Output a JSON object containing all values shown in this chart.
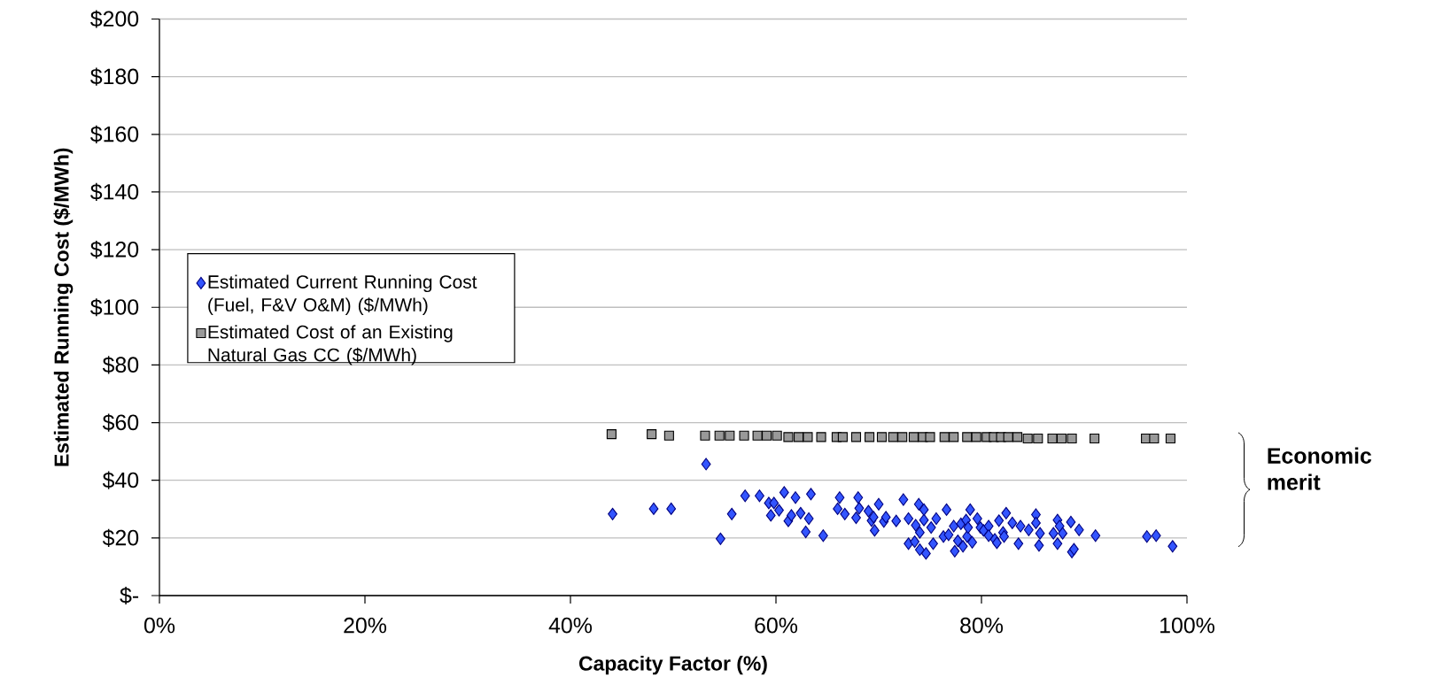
{
  "chart_data": {
    "type": "scatter",
    "xlabel": "Capacity Factor (%)",
    "ylabel": "Estimated Running Cost ($/MWh)",
    "xlim": [
      0,
      100
    ],
    "ylim": [
      0,
      200
    ],
    "xticks": [
      {
        "value": 0,
        "label": "0%"
      },
      {
        "value": 20,
        "label": "20%"
      },
      {
        "value": 40,
        "label": "40%"
      },
      {
        "value": 60,
        "label": "60%"
      },
      {
        "value": 80,
        "label": "80%"
      },
      {
        "value": 100,
        "label": "100%"
      }
    ],
    "yticks": [
      {
        "value": 0,
        "label": "$-"
      },
      {
        "value": 20,
        "label": "$20"
      },
      {
        "value": 40,
        "label": "$40"
      },
      {
        "value": 60,
        "label": "$60"
      },
      {
        "value": 80,
        "label": "$80"
      },
      {
        "value": 100,
        "label": "$100"
      },
      {
        "value": 120,
        "label": "$120"
      },
      {
        "value": 140,
        "label": "$140"
      },
      {
        "value": 160,
        "label": "$160"
      },
      {
        "value": 180,
        "label": "$180"
      },
      {
        "value": 200,
        "label": "$200"
      }
    ],
    "grid": "y",
    "legend": "left",
    "annotations": [
      "Economic merit"
    ],
    "series": [
      {
        "name": "Estimated Current Running Cost (Fuel, F&V O&M) ($/MWh)",
        "color": "#3355ff",
        "marker": "diamond",
        "x": [
          44.1,
          48.1,
          49.8,
          53.2,
          54.6,
          55.7,
          57.0,
          58.4,
          59.3,
          59.8,
          59.5,
          60.3,
          60.8,
          61.2,
          61.5,
          61.9,
          62.4,
          62.9,
          63.2,
          63.4,
          64.6,
          66.2,
          66.0,
          66.7,
          67.8,
          68.0,
          68.1,
          69.0,
          69.3,
          69.5,
          69.6,
          70.0,
          70.5,
          70.7,
          71.7,
          72.4,
          72.9,
          72.9,
          73.5,
          73.6,
          73.9,
          74.0,
          74.0,
          74.4,
          74.4,
          74.6,
          75.1,
          75.3,
          75.6,
          76.3,
          76.6,
          76.8,
          77.3,
          77.4,
          77.7,
          78.0,
          78.2,
          78.5,
          78.6,
          78.7,
          78.9,
          79.1,
          79.6,
          79.9,
          80.2,
          80.7,
          80.7,
          81.3,
          81.5,
          81.7,
          82.1,
          82.2,
          82.4,
          83.0,
          83.6,
          83.8,
          84.6,
          85.3,
          85.3,
          85.6,
          85.7,
          87.0,
          87.4,
          87.4,
          87.6,
          87.9,
          88.7,
          88.8,
          89.0,
          89.5,
          91.1,
          96.1,
          97.0,
          98.6
        ],
        "values": [
          28.3,
          30.1,
          30.1,
          45.6,
          19.7,
          28.3,
          34.6,
          34.6,
          32.1,
          32.1,
          27.8,
          29.6,
          35.8,
          25.9,
          27.8,
          34.0,
          28.6,
          22.1,
          26.7,
          35.2,
          20.8,
          34.0,
          30.1,
          28.3,
          27.0,
          34.0,
          30.3,
          29.3,
          26.0,
          27.2,
          22.6,
          31.7,
          25.7,
          27.2,
          25.9,
          33.3,
          26.7,
          18.0,
          18.7,
          24.4,
          31.7,
          21.9,
          15.9,
          26.2,
          29.8,
          14.6,
          23.6,
          18.0,
          26.7,
          20.5,
          29.8,
          21.1,
          24.1,
          15.4,
          19.0,
          24.9,
          17.1,
          26.2,
          20.5,
          23.6,
          29.8,
          18.5,
          26.7,
          23.6,
          22.6,
          24.1,
          20.8,
          19.5,
          18.3,
          26.0,
          21.9,
          20.5,
          28.6,
          25.2,
          18.0,
          24.1,
          22.8,
          28.1,
          25.2,
          17.4,
          21.6,
          21.6,
          26.2,
          18.0,
          24.1,
          21.6,
          25.5,
          15.1,
          16.1,
          22.8,
          20.8,
          20.5,
          20.8,
          17.1
        ]
      },
      {
        "name": "Estimated Cost of an Existing Natural Gas CC ($/MWh)",
        "color": "#999999",
        "marker": "square",
        "x": [
          44.0,
          47.9,
          49.6,
          53.1,
          54.5,
          55.5,
          56.9,
          58.2,
          59.1,
          60.1,
          61.2,
          62.2,
          63.1,
          64.4,
          65.9,
          66.5,
          67.8,
          69.1,
          70.3,
          71.4,
          72.3,
          73.4,
          74.3,
          75.0,
          76.4,
          77.3,
          78.6,
          79.5,
          80.5,
          81.2,
          81.9,
          82.6,
          83.5,
          84.5,
          85.5,
          86.9,
          87.8,
          88.8,
          91.0,
          96.0,
          96.8,
          98.4
        ],
        "values": [
          56,
          56,
          55.5,
          55.5,
          55.5,
          55.5,
          55.5,
          55.5,
          55.5,
          55.5,
          55,
          55,
          55,
          55,
          55,
          55,
          55,
          55,
          55,
          55,
          55,
          55,
          55,
          55,
          55,
          55,
          55,
          55,
          55,
          55,
          55,
          55,
          55,
          54.5,
          54.5,
          54.5,
          54.5,
          54.5,
          54.5,
          54.5,
          54.5,
          54.5
        ]
      }
    ]
  }
}
